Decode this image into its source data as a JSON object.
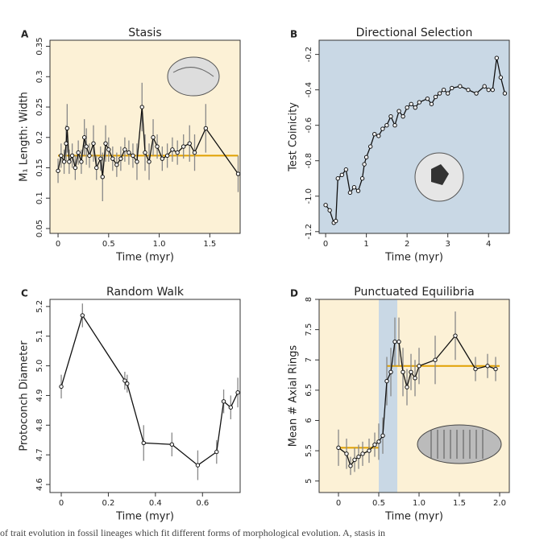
{
  "chart_data": [
    {
      "type": "line",
      "panel": "A",
      "title": "Stasis",
      "xlabel": "Time (myr)",
      "ylabel": "M₁ Length: Width",
      "background": "#fcf1d6",
      "color": "#111111",
      "error_color": "#888888",
      "mean_color": "#e0a000",
      "x": [
        0,
        0.03,
        0.06,
        0.08,
        0.09,
        0.11,
        0.14,
        0.17,
        0.2,
        0.23,
        0.26,
        0.28,
        0.31,
        0.35,
        0.38,
        0.42,
        0.44,
        0.47,
        0.5,
        0.54,
        0.58,
        0.62,
        0.66,
        0.7,
        0.74,
        0.78,
        0.83,
        0.86,
        0.9,
        0.94,
        0.98,
        1.03,
        1.08,
        1.13,
        1.18,
        1.24,
        1.3,
        1.35,
        1.46,
        1.78
      ],
      "values": [
        0.145,
        0.17,
        0.16,
        0.19,
        0.215,
        0.16,
        0.17,
        0.15,
        0.175,
        0.16,
        0.2,
        0.185,
        0.17,
        0.19,
        0.15,
        0.165,
        0.135,
        0.19,
        0.18,
        0.165,
        0.155,
        0.165,
        0.18,
        0.175,
        0.17,
        0.16,
        0.25,
        0.175,
        0.16,
        0.2,
        0.185,
        0.165,
        0.17,
        0.18,
        0.175,
        0.185,
        0.19,
        0.175,
        0.215,
        0.14
      ],
      "errors": [
        0.02,
        0.02,
        0.02,
        0.03,
        0.04,
        0.02,
        0.02,
        0.02,
        0.02,
        0.02,
        0.03,
        0.03,
        0.02,
        0.03,
        0.02,
        0.02,
        0.04,
        0.03,
        0.02,
        0.02,
        0.02,
        0.02,
        0.02,
        0.02,
        0.02,
        0.03,
        0.04,
        0.03,
        0.03,
        0.03,
        0.02,
        0.02,
        0.02,
        0.02,
        0.02,
        0.02,
        0.03,
        0.03,
        0.04,
        0.03
      ],
      "mean_lines": [
        {
          "x": [
            0,
            1.78
          ],
          "value": 0.17
        }
      ],
      "xlim": [
        -0.08,
        1.8
      ],
      "ylim": [
        0.042,
        0.36
      ],
      "xticks": [
        0,
        0.5,
        {
          "value": 1,
          "label": "1.0"
        },
        1.5
      ],
      "yticks": [
        0.05,
        0.1,
        0.15,
        0.2,
        0.25,
        0.3,
        0.35
      ]
    },
    {
      "type": "line",
      "panel": "B",
      "title": "Directional Selection",
      "xlabel": "Time (myr)",
      "ylabel": "Test Coinicity",
      "background": "#c9d8e5",
      "color": "#111111",
      "x": [
        0,
        0.1,
        0.2,
        0.25,
        0.3,
        0.4,
        0.5,
        0.6,
        0.7,
        0.8,
        0.9,
        0.95,
        1.0,
        1.1,
        1.2,
        1.3,
        1.4,
        1.5,
        1.6,
        1.7,
        1.8,
        1.9,
        2.0,
        2.1,
        2.2,
        2.3,
        2.5,
        2.6,
        2.7,
        2.8,
        2.9,
        3.0,
        3.1,
        3.3,
        3.5,
        3.7,
        3.9,
        4.0,
        4.1,
        4.2,
        4.3,
        4.4
      ],
      "values": [
        -1.05,
        -1.08,
        -1.15,
        -1.14,
        -0.9,
        -0.88,
        -0.85,
        -0.98,
        -0.95,
        -0.97,
        -0.9,
        -0.82,
        -0.78,
        -0.72,
        -0.65,
        -0.66,
        -0.62,
        -0.6,
        -0.55,
        -0.6,
        -0.52,
        -0.55,
        -0.5,
        -0.48,
        -0.5,
        -0.47,
        -0.45,
        -0.48,
        -0.44,
        -0.42,
        -0.4,
        -0.42,
        -0.39,
        -0.38,
        -0.4,
        -0.42,
        -0.38,
        -0.4,
        -0.4,
        -0.22,
        -0.33,
        -0.42
      ],
      "xlim": [
        -0.16,
        4.51
      ],
      "ylim": [
        -1.21,
        -0.12
      ],
      "xticks": [
        0,
        1,
        2,
        3,
        4
      ],
      "yticks": [
        -0.2,
        -0.4,
        -0.6,
        -0.8,
        {
          "value": -1,
          "label": "-1.0"
        },
        -1.2
      ]
    },
    {
      "type": "line",
      "panel": "C",
      "title": "Random Walk",
      "xlabel": "Time (myr)",
      "ylabel": "Protoconch Diameter",
      "background": "#ffffff",
      "color": "#111111",
      "error_color": "#888888",
      "x": [
        0,
        0.09,
        0.27,
        0.28,
        0.35,
        0.47,
        0.58,
        0.66,
        0.69,
        0.72,
        0.75
      ],
      "values": [
        4.93,
        5.17,
        4.95,
        4.94,
        4.74,
        4.735,
        4.665,
        4.71,
        4.88,
        4.86,
        4.91
      ],
      "errors": [
        0.04,
        0.04,
        0.03,
        0.03,
        0.06,
        0.04,
        0.05,
        0.04,
        0.04,
        0.04,
        0.05
      ],
      "xlim": [
        -0.048,
        0.76
      ],
      "ylim": [
        4.573,
        5.224
      ],
      "xticks": [
        0,
        0.2,
        0.4,
        0.6
      ],
      "yticks": [
        4.6,
        4.7,
        4.8,
        4.9,
        {
          "value": 5,
          "label": "5.0"
        },
        5.1,
        5.2
      ]
    },
    {
      "type": "line",
      "panel": "D",
      "title": "Punctuated Equilibria",
      "xlabel": "Time (myr)",
      "ylabel": "Mean # Axial Rings",
      "background": "#fcf1d6",
      "color": "#111111",
      "error_color": "#888888",
      "mean_color": "#e0a000",
      "shade_color": "#c9d8e5",
      "shade_x": [
        0.5,
        0.73
      ],
      "x": [
        0,
        0.1,
        0.15,
        0.2,
        0.25,
        0.3,
        0.38,
        0.45,
        0.5,
        0.55,
        0.6,
        0.65,
        0.7,
        0.75,
        0.8,
        0.85,
        0.9,
        0.95,
        1.0,
        1.2,
        1.45,
        1.7,
        1.85,
        1.95
      ],
      "values": [
        5.55,
        5.45,
        5.25,
        5.35,
        5.4,
        5.45,
        5.5,
        5.6,
        5.65,
        5.75,
        6.65,
        6.8,
        7.3,
        7.3,
        6.8,
        6.55,
        6.8,
        6.7,
        6.9,
        7.0,
        7.4,
        6.85,
        6.9,
        6.85
      ],
      "errors": [
        0.3,
        0.25,
        0.15,
        0.2,
        0.2,
        0.2,
        0.2,
        0.2,
        0.3,
        0.3,
        0.4,
        0.4,
        0.4,
        0.4,
        0.4,
        0.3,
        0.3,
        0.3,
        0.3,
        0.4,
        0.4,
        0.2,
        0.2,
        0.2
      ],
      "mean_lines": [
        {
          "x": [
            0,
            0.5
          ],
          "value": 5.55
        },
        {
          "x": [
            0.6,
            2
          ],
          "value": 6.9
        }
      ],
      "xlim": [
        -0.24,
        2.12
      ],
      "ylim": [
        4.81,
        8
      ],
      "xticks": [
        0,
        0.5,
        {
          "value": 1,
          "label": "1.0"
        },
        1.5,
        {
          "value": 2,
          "label": "2.0"
        }
      ],
      "yticks": [
        5,
        5.5,
        6,
        6.5,
        7,
        7.5,
        8
      ]
    }
  ],
  "caption": "of trait evolution in fossil lineages which fit different forms of morphological evolution. A, stasis in"
}
